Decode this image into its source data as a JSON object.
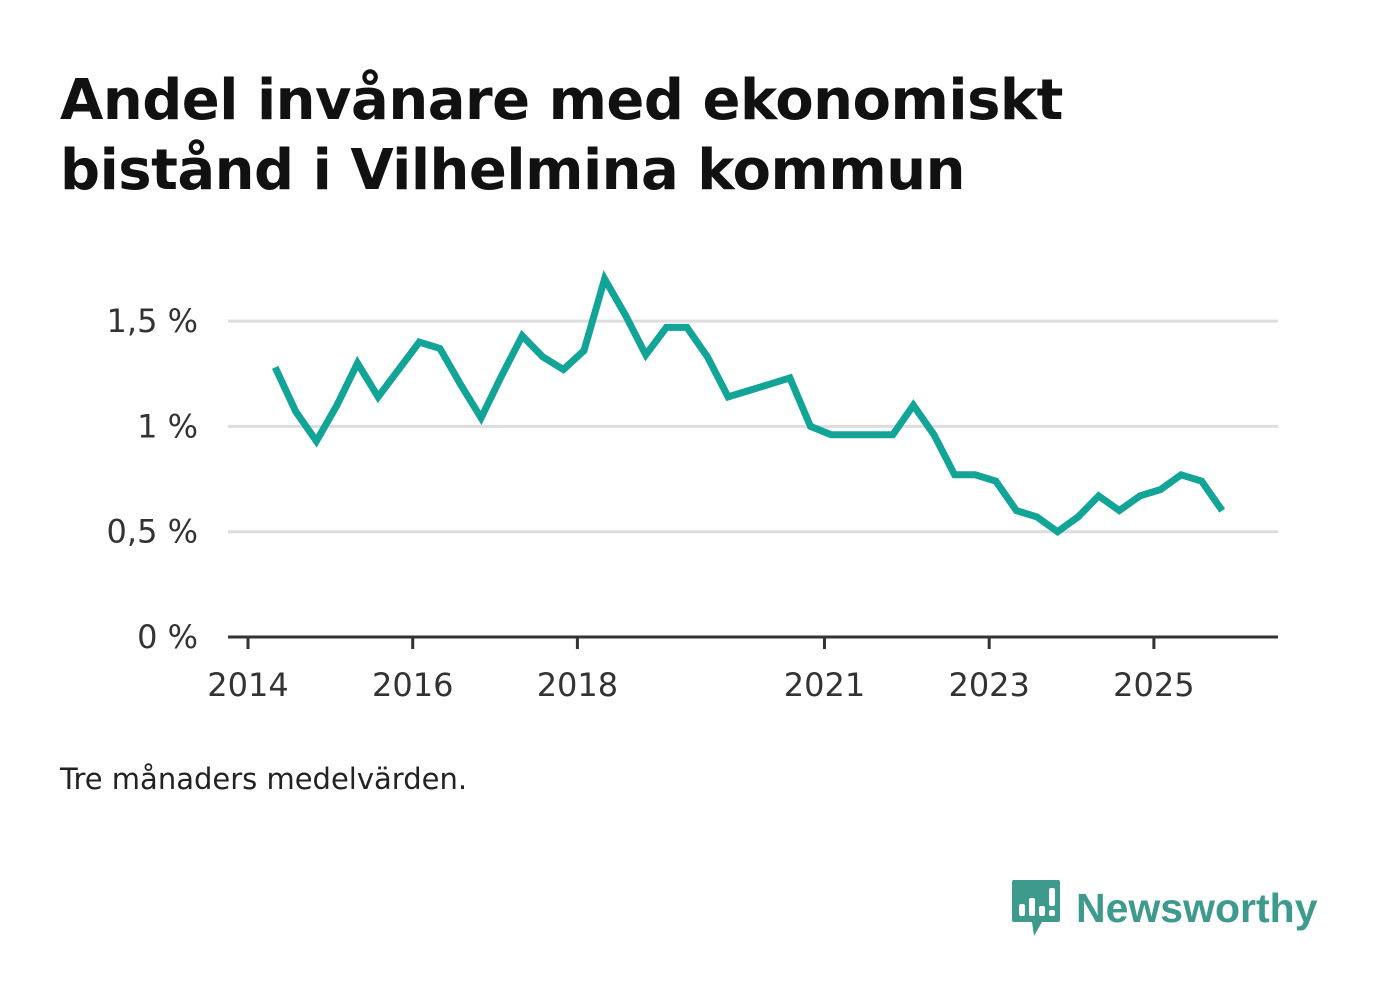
{
  "title": "Andel invånare med ekonomiskt bistånd i Vilhelmina kommun",
  "note": "Tre månaders medelvärden.",
  "brand": {
    "name": "Newsworthy",
    "icon": "bar-chart-speech-bubble-icon",
    "color": "#3d9a8d"
  },
  "colors": {
    "line": "#12a497",
    "grid": "#dddddd",
    "axis": "#333333"
  },
  "chart_data": {
    "type": "line",
    "title": "Andel invånare med ekonomiskt bistånd i Vilhelmina kommun",
    "xlabel": "",
    "ylabel": "",
    "ylim": [
      0,
      1.6
    ],
    "xlim": [
      2014.0,
      2026.75
    ],
    "y_ticks": [
      {
        "value": 0,
        "label": "0 %"
      },
      {
        "value": 0.5,
        "label": "0,5 %"
      },
      {
        "value": 1.0,
        "label": "1 %"
      },
      {
        "value": 1.5,
        "label": "1,5 %"
      }
    ],
    "x_ticks": [
      {
        "value": 2014,
        "label": "2014"
      },
      {
        "value": 2016,
        "label": "2016"
      },
      {
        "value": 2018,
        "label": "2018"
      },
      {
        "value": 2021,
        "label": "2021"
      },
      {
        "value": 2023,
        "label": "2023"
      },
      {
        "value": 2025,
        "label": "2025"
      }
    ],
    "grid": true,
    "series": [
      {
        "name": "Andel invånare med ekonomiskt bistånd",
        "x": [
          2014.33,
          2014.58,
          2014.83,
          2015.08,
          2015.33,
          2015.58,
          2015.83,
          2016.08,
          2016.33,
          2016.58,
          2016.83,
          2017.08,
          2017.33,
          2017.58,
          2017.83,
          2018.08,
          2018.33,
          2018.58,
          2018.83,
          2019.08,
          2019.33,
          2019.58,
          2019.83,
          2020.08,
          2020.33,
          2020.58,
          2020.83,
          2021.08,
          2021.33,
          2021.58,
          2021.83,
          2022.08,
          2022.33,
          2022.58,
          2022.83,
          2023.08,
          2023.33,
          2023.58,
          2023.83,
          2024.08,
          2024.33,
          2024.58,
          2024.83,
          2025.08,
          2025.33,
          2025.58,
          2025.83
        ],
        "values": [
          1.28,
          1.07,
          0.93,
          1.1,
          1.3,
          1.14,
          1.27,
          1.4,
          1.37,
          1.2,
          1.04,
          1.24,
          1.43,
          1.33,
          1.27,
          1.36,
          1.7,
          1.53,
          1.34,
          1.47,
          1.47,
          1.33,
          1.14,
          1.17,
          1.2,
          1.23,
          1.0,
          0.96,
          0.96,
          0.96,
          0.96,
          1.1,
          0.96,
          0.77,
          0.77,
          0.74,
          0.6,
          0.57,
          0.5,
          0.57,
          0.67,
          0.6,
          0.67,
          0.7,
          0.77,
          0.74,
          0.6
        ]
      }
    ]
  }
}
